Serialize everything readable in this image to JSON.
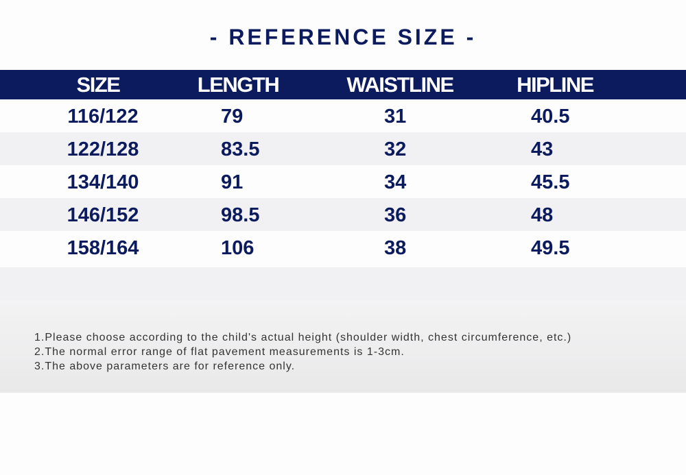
{
  "title": "- REFERENCE SIZE -",
  "table": {
    "header": [
      "SIZE",
      "LENGTH",
      "WAISTLINE",
      "HIPLINE"
    ],
    "rows": [
      [
        "116/122",
        "79",
        "31",
        "40.5"
      ],
      [
        "122/128",
        "83.5",
        "32",
        "43"
      ],
      [
        "134/140",
        "91",
        "34",
        "45.5"
      ],
      [
        "146/152",
        "98.5",
        "36",
        "48"
      ],
      [
        "158/164",
        "106",
        "38",
        "49.5"
      ]
    ]
  },
  "notes": [
    "1.Please choose according to the child's actual height (shoulder width, chest circumference, etc.)",
    "2.The normal error range of flat pavement measurements is 1-3cm.",
    "3.The above parameters are for reference only."
  ]
}
